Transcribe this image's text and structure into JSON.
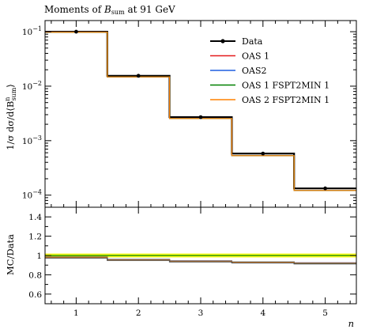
{
  "chart_data": {
    "type": "line",
    "title": "Moments of B_sum at 91 GeV",
    "title_parts": {
      "pre": "Moments of ",
      "sym": "B",
      "sub": "sum",
      "post": " at 91 GeV"
    },
    "xlabel": "n",
    "ylabel_main": "1/σ dσ/d⟨B_sum^n⟩",
    "ylabel_ratio": "MC/Data",
    "x_edges": [
      0.5,
      1.5,
      2.5,
      3.5,
      4.5,
      5.5
    ],
    "x_ticks": [
      "1",
      "2",
      "3",
      "4",
      "5"
    ],
    "y_scale": "log",
    "ylim": [
      6e-05,
      0.16
    ],
    "y_ticks": [
      {
        "value": 0.1,
        "base": "10",
        "exp": "−1"
      },
      {
        "value": 0.01,
        "base": "10",
        "exp": "−2"
      },
      {
        "value": 0.001,
        "base": "10",
        "exp": "−3"
      },
      {
        "value": 0.0001,
        "base": "10",
        "exp": "−4"
      }
    ],
    "data": {
      "name": "Data",
      "x": [
        1,
        2,
        3,
        4,
        5
      ],
      "y": [
        0.1,
        0.0155,
        0.0027,
        0.00058,
        0.000133
      ]
    },
    "series": [
      {
        "name": "OAS 1",
        "color": "#e41a1c",
        "values": [
          0.098,
          0.0148,
          0.00255,
          0.00053,
          0.000122
        ]
      },
      {
        "name": "OAS2",
        "color": "#1f5fe0",
        "values": [
          0.098,
          0.0148,
          0.00255,
          0.00053,
          0.000122
        ]
      },
      {
        "name": "OAS 1 FSPT2MIN 1",
        "color": "#008000",
        "values": [
          0.098,
          0.0148,
          0.00255,
          0.00053,
          0.000122
        ]
      },
      {
        "name": "OAS 2 FSPT2MIN 1",
        "color": "#ff8000",
        "values": [
          0.098,
          0.0148,
          0.00255,
          0.00053,
          0.000122
        ]
      }
    ],
    "ratio": {
      "ylim": [
        0.5,
        1.5
      ],
      "y_ticks": [
        "0.6",
        "0.8",
        "1",
        "1.2",
        "1.4"
      ],
      "band_color": "#ffff00",
      "mc_color": "#ff8000",
      "mc_values": [
        0.98,
        0.955,
        0.94,
        0.93,
        0.92
      ]
    },
    "legend_position": "top-right",
    "grid": false
  }
}
